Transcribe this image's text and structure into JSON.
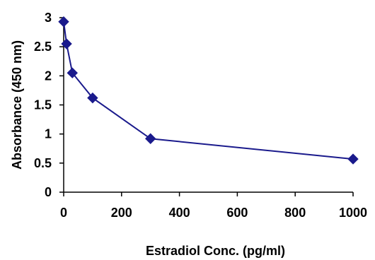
{
  "chart_data": {
    "type": "line",
    "title": "",
    "xlabel": "Estradiol Conc. (pg/ml)",
    "ylabel": "Absorbance (450 nm)",
    "xlim": [
      0,
      1000
    ],
    "ylim": [
      0,
      3
    ],
    "xticks": [
      0,
      200,
      400,
      600,
      800,
      1000
    ],
    "yticks": [
      0,
      0.5,
      1,
      1.5,
      2,
      2.5,
      3
    ],
    "xtick_labels": [
      "0",
      "200",
      "400",
      "600",
      "800",
      "1000"
    ],
    "ytick_labels": [
      "0",
      "0.5",
      "1",
      "1.5",
      "2",
      "2.5",
      "3"
    ],
    "grid": false,
    "legend": "none",
    "series": [
      {
        "color": "#1a1a8c",
        "marker": "diamond",
        "x": [
          0,
          10,
          30,
          100,
          300,
          1000
        ],
        "y": [
          2.93,
          2.55,
          2.05,
          1.62,
          0.92,
          0.57
        ]
      }
    ]
  }
}
